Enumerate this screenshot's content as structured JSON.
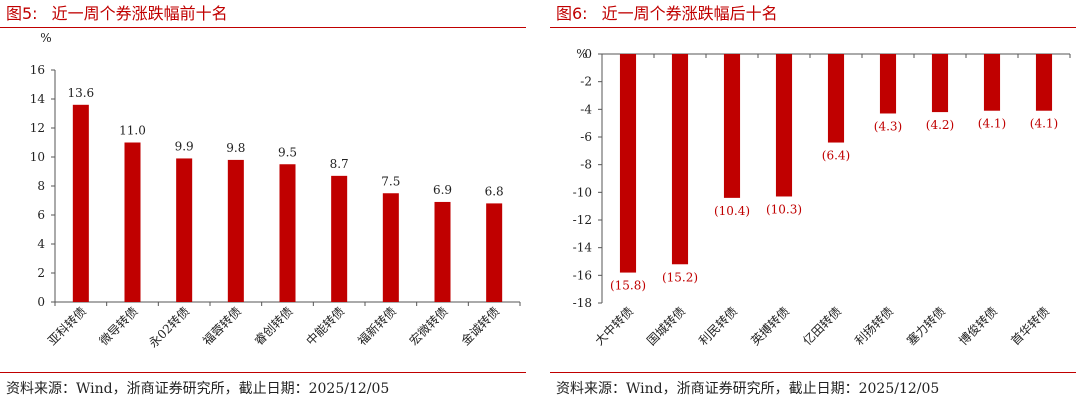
{
  "figures": [
    {
      "fig_label": "图5:",
      "title": "近一周个券涨跌幅前十名",
      "source": "资料来源：Wind，浙商证券研究所，截止日期：2025/12/05"
    },
    {
      "fig_label": "图6:",
      "title": "近一周个券涨跌幅后十名",
      "source": "资料来源：Wind，浙商证券研究所，截止日期：2025/12/05"
    }
  ],
  "colors": {
    "bar": "#c00000",
    "accent": "#c00000",
    "label_negative": "#c00000",
    "label_positive": "#222222"
  },
  "chart_data": [
    {
      "type": "bar",
      "title": "近一周个券涨跌幅前十名",
      "ylabel": "%",
      "ylim": [
        0,
        16
      ],
      "yticks": [
        0,
        2,
        4,
        6,
        8,
        10,
        12,
        14,
        16
      ],
      "categories": [
        "亚科转债",
        "微导转债",
        "永02转债",
        "福蓉转债",
        "睿创转债",
        "中能转债",
        "福新转债",
        "宏微转债",
        "金诚转债"
      ],
      "values": [
        13.6,
        11.0,
        9.9,
        9.8,
        9.5,
        8.7,
        7.5,
        6.9,
        6.8
      ],
      "data_labels": [
        "13.6",
        "11.0",
        "9.9",
        "9.8",
        "9.5",
        "8.7",
        "7.5",
        "6.9",
        "6.8"
      ],
      "grid": false
    },
    {
      "type": "bar",
      "title": "近一周个券涨跌幅后十名",
      "ylabel": "%",
      "ylim": [
        -18,
        0
      ],
      "yticks": [
        0,
        -2,
        -4,
        -6,
        -8,
        -10,
        -12,
        -14,
        -16,
        -18
      ],
      "categories": [
        "大中转债",
        "国城转债",
        "利民转债",
        "英搏转债",
        "亿田转债",
        "利扬转债",
        "塞力转债",
        "博俊转债",
        "首华转债"
      ],
      "values": [
        -15.8,
        -15.2,
        -10.4,
        -10.3,
        -6.4,
        -4.3,
        -4.2,
        -4.1,
        -4.1
      ],
      "data_labels": [
        "(15.8)",
        "(15.2)",
        "(10.4)",
        "(10.3)",
        "(6.4)",
        "(4.3)",
        "(4.2)",
        "(4.1)",
        "(4.1)"
      ],
      "grid": false
    }
  ]
}
